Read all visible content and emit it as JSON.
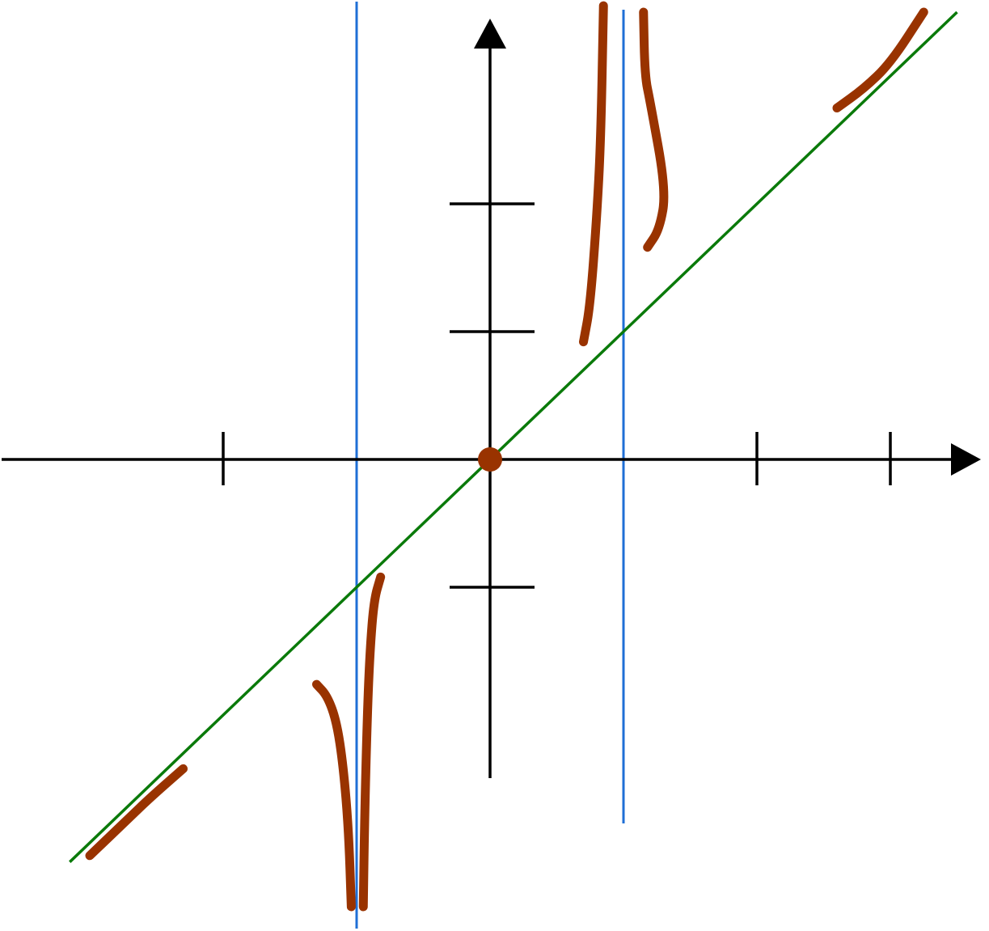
{
  "chart_data": {
    "type": "line",
    "xlim": [
      -3.7,
      3.7
    ],
    "ylim": [
      -3.6,
      3.6
    ],
    "x_ticks": [
      -2,
      2,
      3
    ],
    "y_ticks": [
      -1,
      1,
      2
    ],
    "grid": false,
    "colors": {
      "axis": "#000000",
      "asymptote_vertical": "#1f6fd6",
      "asymptote_slant": "#0a7a0a",
      "curve": "#993300"
    },
    "vertical_asymptotes": [
      -1,
      1
    ],
    "slant_asymptote": {
      "slope": 1,
      "intercept": 0
    },
    "series": [
      {
        "points": [
          [
            -3.0,
            -3.1
          ],
          [
            -2.7,
            -2.8
          ],
          [
            -2.55,
            -2.65
          ],
          [
            -2.3,
            -2.42
          ]
        ]
      },
      {
        "points": [
          [
            -1.3,
            -1.76
          ],
          [
            -1.22,
            -1.85
          ],
          [
            -1.15,
            -2.05
          ],
          [
            -1.1,
            -2.4
          ],
          [
            -1.06,
            -2.9
          ],
          [
            -1.04,
            -3.5
          ]
        ]
      },
      {
        "points": [
          [
            -0.82,
            -0.92
          ],
          [
            -0.87,
            -1.1
          ],
          [
            -0.9,
            -1.5
          ],
          [
            -0.92,
            -2.0
          ],
          [
            -0.94,
            -2.8
          ],
          [
            -0.95,
            -3.5
          ]
        ]
      },
      {
        "points": [
          [
            0.0,
            0.0
          ]
        ]
      },
      {
        "points": [
          [
            0.7,
            0.92
          ],
          [
            0.75,
            1.2
          ],
          [
            0.8,
            1.9
          ],
          [
            0.83,
            2.5
          ],
          [
            0.85,
            3.55
          ]
        ]
      },
      {
        "points": [
          [
            1.18,
            1.66
          ],
          [
            1.27,
            1.8
          ],
          [
            1.32,
            2.1
          ],
          [
            1.2,
            2.8
          ],
          [
            1.16,
            3.0
          ],
          [
            1.15,
            3.5
          ]
        ]
      },
      {
        "points": [
          [
            2.6,
            2.75
          ],
          [
            2.8,
            2.9
          ],
          [
            3.0,
            3.1
          ],
          [
            3.25,
            3.5
          ]
        ]
      }
    ]
  }
}
